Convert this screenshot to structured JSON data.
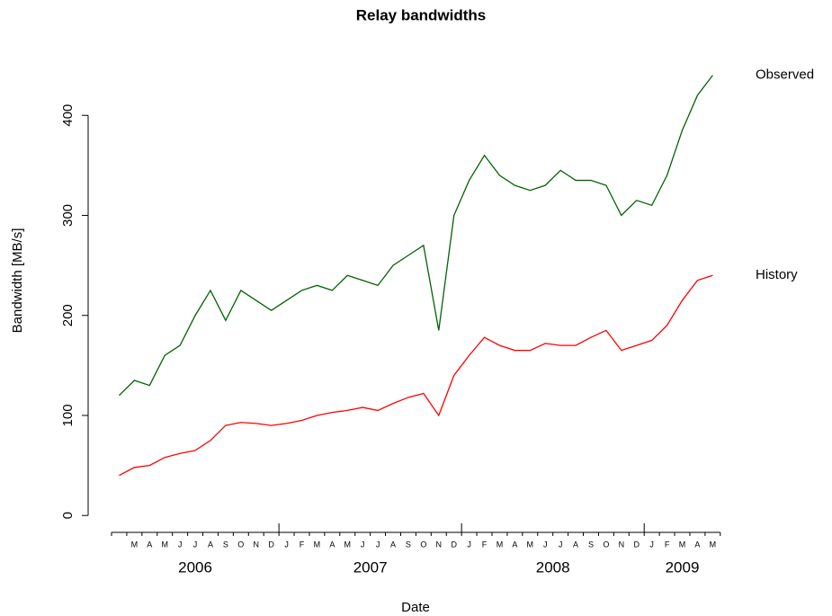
{
  "chart_data": {
    "type": "line",
    "title": "Relay bandwidths",
    "x_label": "Date",
    "y_label": "Bandwidth [MB/s]",
    "x": [
      "2006-02",
      "2006-03",
      "2006-04",
      "2006-05",
      "2006-06",
      "2006-07",
      "2006-08",
      "2006-09",
      "2006-10",
      "2006-11",
      "2006-12",
      "2007-01",
      "2007-02",
      "2007-03",
      "2007-04",
      "2007-05",
      "2007-06",
      "2007-07",
      "2007-08",
      "2007-09",
      "2007-10",
      "2007-11",
      "2007-12",
      "2008-01",
      "2008-02",
      "2008-03",
      "2008-04",
      "2008-05",
      "2008-06",
      "2008-07",
      "2008-08",
      "2008-09",
      "2008-10",
      "2008-11",
      "2008-12",
      "2009-01",
      "2009-02",
      "2009-03",
      "2009-04",
      "2009-05"
    ],
    "month_labels": [
      null,
      "M",
      "A",
      "M",
      "J",
      "J",
      "A",
      "S",
      "O",
      "N",
      "D",
      "J",
      "F",
      "M",
      "A",
      "M",
      "J",
      "J",
      "A",
      "S",
      "O",
      "N",
      "D",
      "J",
      "F",
      "M",
      "A",
      "M",
      "J",
      "J",
      "A",
      "S",
      "O",
      "N",
      "D",
      "J",
      "F",
      "M",
      "A",
      "M"
    ],
    "year_labels": [
      "2006",
      "2007",
      "2008",
      "2009"
    ],
    "series": [
      {
        "name": "Observed",
        "color": "#006400",
        "values": [
          120,
          135,
          130,
          160,
          170,
          200,
          225,
          195,
          225,
          215,
          205,
          215,
          225,
          230,
          225,
          240,
          235,
          230,
          250,
          260,
          270,
          185,
          300,
          335,
          360,
          340,
          330,
          325,
          330,
          345,
          335,
          335,
          330,
          300,
          315,
          310,
          340,
          385,
          420,
          440
        ]
      },
      {
        "name": "History",
        "color": "#ff0000",
        "values": [
          40,
          48,
          50,
          58,
          62,
          65,
          75,
          90,
          93,
          92,
          90,
          92,
          95,
          100,
          103,
          105,
          108,
          105,
          112,
          118,
          122,
          100,
          140,
          160,
          178,
          170,
          165,
          165,
          172,
          170,
          170,
          178,
          185,
          165,
          170,
          175,
          190,
          215,
          235,
          240
        ]
      }
    ],
    "ylim": [
      -16,
      478
    ],
    "yticks": [
      0,
      100,
      200,
      300,
      400
    ],
    "grid": false
  }
}
